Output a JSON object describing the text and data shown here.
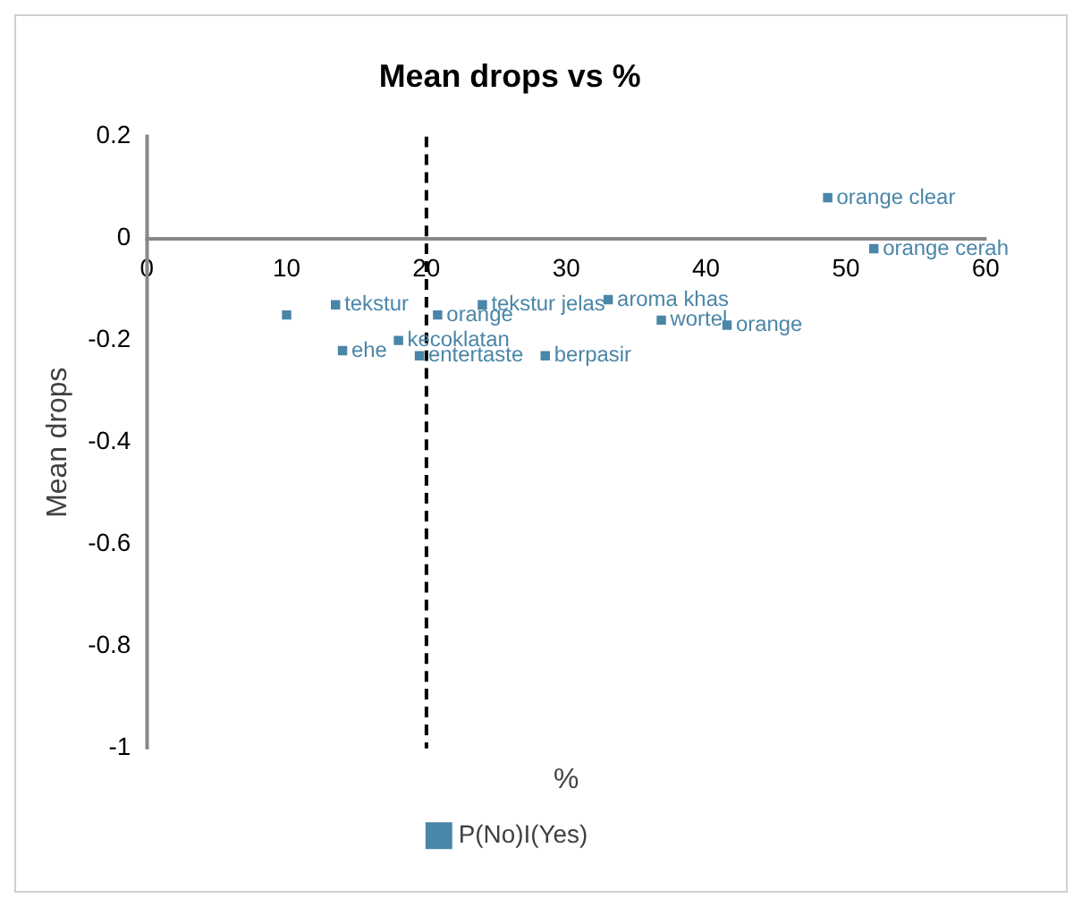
{
  "chart_data": {
    "type": "scatter",
    "title": "Mean drops vs %",
    "xlabel": "%",
    "ylabel": "Mean drops",
    "series": [
      {
        "name": "P(No)I(Yes)",
        "color": "#4a86a8",
        "x": [
          10,
          13.5,
          14,
          20.8,
          18,
          24,
          19.5,
          28.5,
          33,
          36.8,
          41.5,
          48.7,
          52
        ],
        "values": [
          -0.15,
          -0.13,
          -0.22,
          -0.15,
          -0.2,
          -0.13,
          -0.23,
          -0.23,
          -0.12,
          -0.16,
          -0.17,
          0.08,
          -0.02
        ]
      }
    ],
    "annotations": [
      {
        "text": "tekstur",
        "x": 13.5,
        "y": -0.13
      },
      {
        "text": "ehe",
        "x": 14,
        "y": -0.22
      },
      {
        "text": "orange",
        "x": 20.8,
        "y": -0.15
      },
      {
        "text": "kecoklatan",
        "x": 18,
        "y": -0.2
      },
      {
        "text": "tekstur jelas",
        "x": 24,
        "y": -0.13
      },
      {
        "text": "entertaste",
        "x": 19.5,
        "y": -0.23
      },
      {
        "text": "berpasir",
        "x": 28.5,
        "y": -0.23
      },
      {
        "text": "aroma khas",
        "x": 33,
        "y": -0.12
      },
      {
        "text": "wortel",
        "x": 36.8,
        "y": -0.16
      },
      {
        "text": "orange",
        "x": 41.5,
        "y": -0.17
      },
      {
        "text": "orange clear",
        "x": 48.7,
        "y": 0.08
      },
      {
        "text": "orange cerah",
        "x": 52,
        "y": -0.02
      }
    ],
    "xlim": [
      0,
      60
    ],
    "xticks": [
      0,
      10,
      20,
      30,
      40,
      50,
      60
    ],
    "ylim": [
      -1,
      0.2
    ],
    "yticks": [
      -1,
      -0.8,
      -0.6,
      -0.4,
      -0.2,
      0,
      0.2
    ],
    "ref_lines": [
      {
        "axis": "x",
        "value": 20,
        "color": "#000000",
        "line_style": "dashed"
      }
    ],
    "grid": false,
    "legend": "bottom",
    "marker": "square"
  }
}
